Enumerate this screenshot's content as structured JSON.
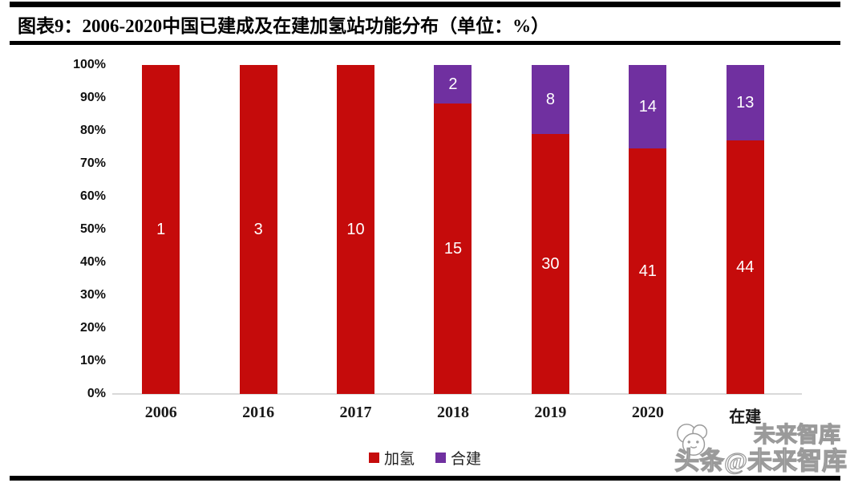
{
  "header": {
    "title": "图表9：2006-2020中国已建成及在建加氢站功能分布（单位：%）"
  },
  "chart_data": {
    "type": "bar",
    "stacked": true,
    "normalized": "100%-stacked",
    "title": "2006-2020中国已建成及在建加氢站功能分布",
    "unit": "%",
    "categories": [
      "2006",
      "2016",
      "2017",
      "2018",
      "2019",
      "2020",
      "在建"
    ],
    "series": [
      {
        "name": "加氢",
        "color": "#c50b0b",
        "values": [
          1,
          3,
          10,
          15,
          30,
          41,
          44
        ]
      },
      {
        "name": "合建",
        "color": "#7030a0",
        "values": [
          0,
          0,
          0,
          2,
          8,
          14,
          13
        ]
      }
    ],
    "y_ticks": [
      "100%",
      "90%",
      "80%",
      "70%",
      "60%",
      "50%",
      "40%",
      "30%",
      "20%",
      "10%",
      "0%"
    ],
    "ylim": [
      0,
      100
    ],
    "xlabel": "",
    "ylabel": "",
    "grid": false,
    "legend_position": "bottom"
  },
  "watermark": {
    "ghost_text": "未来智库",
    "main_text": "头条@未来智库"
  },
  "colors": {
    "hydrogen_red": "#c50b0b",
    "cobuild_purple": "#7030a0",
    "baseline_gray": "#d9d9d9",
    "rule_black": "#000000"
  }
}
